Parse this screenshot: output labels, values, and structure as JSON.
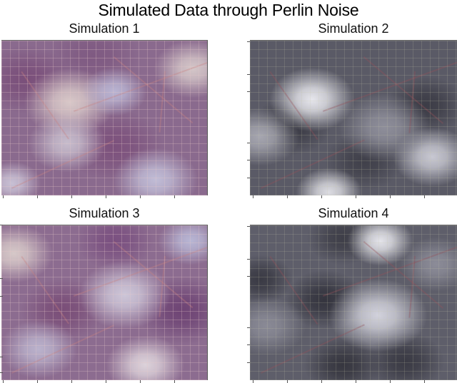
{
  "figure": {
    "title": "Simulated Data through Perlin Noise"
  },
  "chart_data": [
    {
      "type": "heatmap",
      "title": "Simulation 1",
      "colormap": "purple (map overlay)",
      "base_color": "#8a6a8e",
      "xlabel": "",
      "ylabel": "",
      "x_tick_labels": [],
      "y_tick_labels": [],
      "grid": true,
      "bright_regions": [
        {
          "x": 0.33,
          "y": 0.4,
          "r": 0.14,
          "color": "#d8c8c8"
        },
        {
          "x": 0.55,
          "y": 0.33,
          "r": 0.1,
          "color": "#b9b4d2"
        },
        {
          "x": 0.93,
          "y": 0.18,
          "r": 0.12,
          "color": "#d4c6c8"
        },
        {
          "x": 0.75,
          "y": 0.9,
          "r": 0.13,
          "color": "#c0bcd6"
        },
        {
          "x": 0.32,
          "y": 0.66,
          "r": 0.12,
          "color": "#c6bccc"
        },
        {
          "x": 0.05,
          "y": 0.92,
          "r": 0.09,
          "color": "#c8c0d4"
        }
      ],
      "dark_regions": [
        {
          "x": 0.12,
          "y": 0.25,
          "r": 0.14,
          "color": "#7a4f7a"
        },
        {
          "x": 0.55,
          "y": 0.68,
          "r": 0.15,
          "color": "#7c517c"
        },
        {
          "x": 0.45,
          "y": 0.1,
          "r": 0.14,
          "color": "#7f5a82"
        }
      ]
    },
    {
      "type": "heatmap",
      "title": "Simulation 2",
      "colormap": "gray (map overlay)",
      "base_color": "#5a5a66",
      "xlabel": "",
      "ylabel": "",
      "x_tick_labels": [],
      "y_tick_labels": [],
      "grid": true,
      "bright_regions": [
        {
          "x": 0.3,
          "y": 0.38,
          "r": 0.13,
          "color": "#e6e6ec"
        },
        {
          "x": 0.88,
          "y": 0.75,
          "r": 0.12,
          "color": "#c8c8d2"
        },
        {
          "x": 0.38,
          "y": 0.98,
          "r": 0.1,
          "color": "#dcdce2"
        },
        {
          "x": 0.05,
          "y": 0.62,
          "r": 0.12,
          "color": "#a6a6b0"
        },
        {
          "x": 0.65,
          "y": 0.56,
          "r": 0.14,
          "color": "#8e8e9a"
        }
      ],
      "dark_regions": [
        {
          "x": 0.2,
          "y": 0.55,
          "r": 0.12,
          "color": "#3a3a44"
        },
        {
          "x": 0.85,
          "y": 0.42,
          "r": 0.12,
          "color": "#3c3c46"
        },
        {
          "x": 0.55,
          "y": 0.78,
          "r": 0.12,
          "color": "#40404a"
        }
      ]
    },
    {
      "type": "heatmap",
      "title": "Simulation 3",
      "colormap": "purple (map overlay)",
      "base_color": "#8c6c90",
      "xlabel": "",
      "ylabel": "",
      "x_tick_labels": [],
      "y_tick_labels": [],
      "grid": true,
      "bright_regions": [
        {
          "x": 0.06,
          "y": 0.18,
          "r": 0.12,
          "color": "#d6c8c8"
        },
        {
          "x": 0.6,
          "y": 0.45,
          "r": 0.14,
          "color": "#cdc6d8"
        },
        {
          "x": 0.7,
          "y": 0.9,
          "r": 0.12,
          "color": "#dcd2da"
        },
        {
          "x": 0.92,
          "y": 0.1,
          "r": 0.1,
          "color": "#b8b6d4"
        },
        {
          "x": 0.18,
          "y": 0.8,
          "r": 0.12,
          "color": "#bab2cc"
        }
      ],
      "dark_regions": [
        {
          "x": 0.88,
          "y": 0.55,
          "r": 0.14,
          "color": "#6e4474"
        },
        {
          "x": 0.3,
          "y": 0.55,
          "r": 0.13,
          "color": "#7a4e78"
        },
        {
          "x": 0.55,
          "y": 0.1,
          "r": 0.12,
          "color": "#7a5080"
        }
      ]
    },
    {
      "type": "heatmap",
      "title": "Simulation 4",
      "colormap": "gray (map overlay)",
      "base_color": "#5e5e6a",
      "xlabel": "",
      "ylabel": "",
      "x_tick_labels": [],
      "y_tick_labels": [],
      "grid": true,
      "bright_regions": [
        {
          "x": 0.63,
          "y": 0.1,
          "r": 0.1,
          "color": "#e4e4ea"
        },
        {
          "x": 0.62,
          "y": 0.58,
          "r": 0.15,
          "color": "#d2d2dc"
        },
        {
          "x": 0.9,
          "y": 0.25,
          "r": 0.11,
          "color": "#8c8c98"
        },
        {
          "x": 0.08,
          "y": 0.65,
          "r": 0.12,
          "color": "#8a8a96"
        }
      ],
      "dark_regions": [
        {
          "x": 0.36,
          "y": 0.48,
          "r": 0.12,
          "color": "#34343e"
        },
        {
          "x": 0.05,
          "y": 0.35,
          "r": 0.1,
          "color": "#3a3a44"
        },
        {
          "x": 0.45,
          "y": 0.9,
          "r": 0.12,
          "color": "#36363f"
        },
        {
          "x": 0.75,
          "y": 0.88,
          "r": 0.12,
          "color": "#3a3a44"
        },
        {
          "x": 0.45,
          "y": 0.08,
          "r": 0.11,
          "color": "#3e3e48"
        }
      ]
    }
  ]
}
